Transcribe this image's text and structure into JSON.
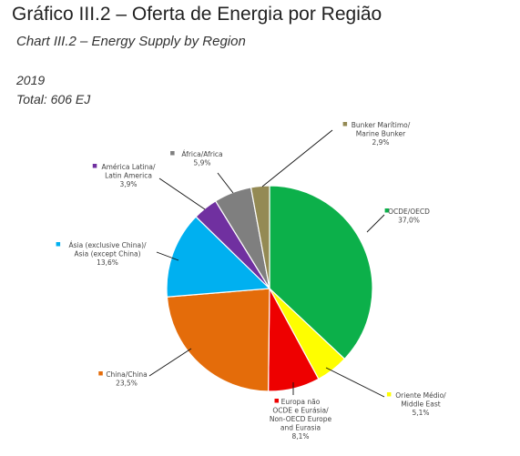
{
  "header": {
    "title": "Gráfico III.2 – Oferta de Energia por Região",
    "subtitle": "Chart III.2 – Energy Supply by Region",
    "year": "2019",
    "total": "Total: 606 EJ"
  },
  "chart_data": {
    "type": "pie",
    "start_angle_deg": 0,
    "direction": "clockwise",
    "slices": [
      {
        "label_lines": [
          "OCDE/OECD",
          "37,0%"
        ],
        "value": 37.0,
        "color": "#0cb04a"
      },
      {
        "label_lines": [
          "Oriente Médio/",
          "Middle East",
          "5,1%"
        ],
        "value": 5.1,
        "color": "#fefe00"
      },
      {
        "label_lines": [
          "Europa não",
          "OCDE e Eurásia/",
          "Non-OECD Europe",
          "and Eurasia",
          "8,1%"
        ],
        "value": 8.1,
        "color": "#ee0000"
      },
      {
        "label_lines": [
          "China/China",
          "23,5%"
        ],
        "value": 23.5,
        "color": "#e46c0a"
      },
      {
        "label_lines": [
          "Ásia (exclusive China)/",
          "Asia (except China)",
          "13,6%"
        ],
        "value": 13.6,
        "color": "#00b0f0"
      },
      {
        "label_lines": [
          "América Latina/",
          "Latin America",
          "3,9%"
        ],
        "value": 3.9,
        "color": "#7030a0"
      },
      {
        "label_lines": [
          "África/Africa",
          "5,9%"
        ],
        "value": 5.9,
        "color": "#7f7f7f"
      },
      {
        "label_lines": [
          "Bunker Marítimo/",
          "Marine Bunker",
          "2,9%"
        ],
        "value": 2.9,
        "color": "#948a54"
      }
    ]
  }
}
